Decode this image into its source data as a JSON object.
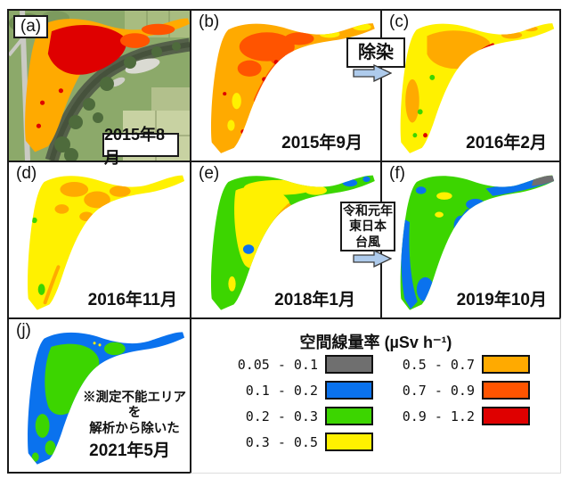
{
  "panels": {
    "a": {
      "label": "(a)",
      "date": "2015年8月",
      "kind": "aerial-photo-with-dose-overlay",
      "dose_classes_visible": [
        "0.5 - 0.7",
        "0.7 - 0.9",
        "0.9 - 1.2"
      ]
    },
    "b": {
      "label": "(b)",
      "date": "2015年9月",
      "dose_classes_visible": [
        "0.3 - 0.5",
        "0.5 - 0.7",
        "0.7 - 0.9",
        "0.9 - 1.2"
      ]
    },
    "c": {
      "label": "(c)",
      "date": "2016年2月",
      "dose_classes_visible": [
        "0.2 - 0.3",
        "0.3 - 0.5",
        "0.5 - 0.7",
        "0.7 - 0.9",
        "0.9 - 1.2"
      ]
    },
    "d": {
      "label": "(d)",
      "date": "2016年11月",
      "dose_classes_visible": [
        "0.2 - 0.3",
        "0.3 - 0.5",
        "0.5 - 0.7"
      ]
    },
    "e": {
      "label": "(e)",
      "date": "2018年1月",
      "dose_classes_visible": [
        "0.1 - 0.2",
        "0.2 - 0.3",
        "0.3 - 0.5",
        "0.5 - 0.7"
      ]
    },
    "f": {
      "label": "(f)",
      "date": "2019年10月",
      "dose_classes_visible": [
        "0.05 - 0.1",
        "0.1 - 0.2",
        "0.2 - 0.3",
        "0.3 - 0.5"
      ]
    },
    "j": {
      "label": "(j)",
      "date": "2021年5月",
      "note": [
        "※測定不能エリアを",
        "解析から除いた"
      ],
      "dose_classes_visible": [
        "0.1 - 0.2",
        "0.2 - 0.3"
      ]
    }
  },
  "annotations": {
    "decontamination_label": "除染",
    "typhoon_label": [
      "令和元年",
      "東日本",
      "台風"
    ]
  },
  "legend": {
    "title": "空間線量率",
    "unit": "(µSv h⁻¹)",
    "entries": [
      {
        "range": "0.05 - 0.1",
        "color": "#6F6F6F"
      },
      {
        "range": "0.1 - 0.2",
        "color": "#0A72EE"
      },
      {
        "range": "0.2 - 0.3",
        "color": "#3CD500"
      },
      {
        "range": "0.3 - 0.5",
        "color": "#FFF100"
      },
      {
        "range": "0.5 - 0.7",
        "color": "#FFAA00"
      },
      {
        "range": "0.7 - 0.9",
        "color": "#FF5400"
      },
      {
        "range": "0.9 - 1.2",
        "color": "#DF0000"
      }
    ]
  },
  "colors": {
    "gray": "#6F6F6F",
    "blue": "#0A72EE",
    "green": "#3CD500",
    "yellow": "#FFF100",
    "orange": "#FFAA00",
    "dorange": "#FF5400",
    "red": "#DF0000",
    "arrow-fill": "#AECBEC",
    "arrow-stroke": "#3A3A3A",
    "border": "#1A1A1A"
  }
}
